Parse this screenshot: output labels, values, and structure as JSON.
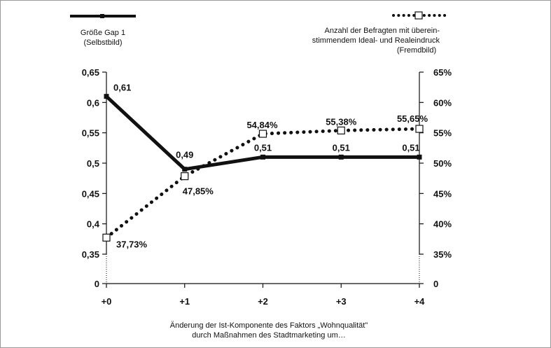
{
  "chart_data": {
    "type": "line",
    "categories": [
      "+0",
      "+1",
      "+2",
      "+3",
      "+4"
    ],
    "series": [
      {
        "name": "Größe Gap 1 (Selbstbild)",
        "axis": "left",
        "style": "solid",
        "color": "#111111",
        "values": [
          0.61,
          0.49,
          0.51,
          0.51,
          0.51
        ],
        "labels": [
          "0,61",
          "0,49",
          "0,51",
          "0,51",
          "0,51"
        ]
      },
      {
        "name": "Anzahl der Befragten mit übereinstimmendem Ideal- und Realeindruck (Fremdbild)",
        "axis": "right",
        "style": "dotted",
        "color": "#111111",
        "values": [
          37.73,
          47.85,
          54.84,
          55.38,
          55.65
        ],
        "labels": [
          "37,73%",
          "47,85%",
          "54,84%",
          "55,38%",
          "55,65%"
        ]
      }
    ],
    "y_left": {
      "ylim": [
        0,
        0.65
      ],
      "ticks": [
        0,
        0.35,
        0.4,
        0.45,
        0.5,
        0.55,
        0.6,
        0.65
      ],
      "tick_labels": [
        "0",
        "0,35",
        "0,4",
        "0,45",
        "0,5",
        "0,55",
        "0,6",
        "0,65"
      ]
    },
    "y_right": {
      "ylim": [
        0,
        65
      ],
      "ticks": [
        0,
        35,
        40,
        45,
        50,
        55,
        60,
        65
      ],
      "tick_labels": [
        "0",
        "35%",
        "40%",
        "45%",
        "50%",
        "55%",
        "60%",
        "65%"
      ]
    },
    "xlabel_line1": "Änderung der Ist-Komponente des Faktors „Wohnqualität\"",
    "xlabel_line2": "durch Maßnahmen des Stadtmarketing um…",
    "legend": {
      "left": {
        "line1": "Größe Gap 1",
        "line2": "(Selbstbild)",
        "placement": "top-left"
      },
      "right": {
        "line1": "Anzahl der Befragten mit überein-",
        "line2": "stimmendem Ideal- und Realeindruck",
        "line3": "(Fremdbild)",
        "placement": "top-right"
      }
    },
    "grid": false,
    "axis_break": true
  }
}
